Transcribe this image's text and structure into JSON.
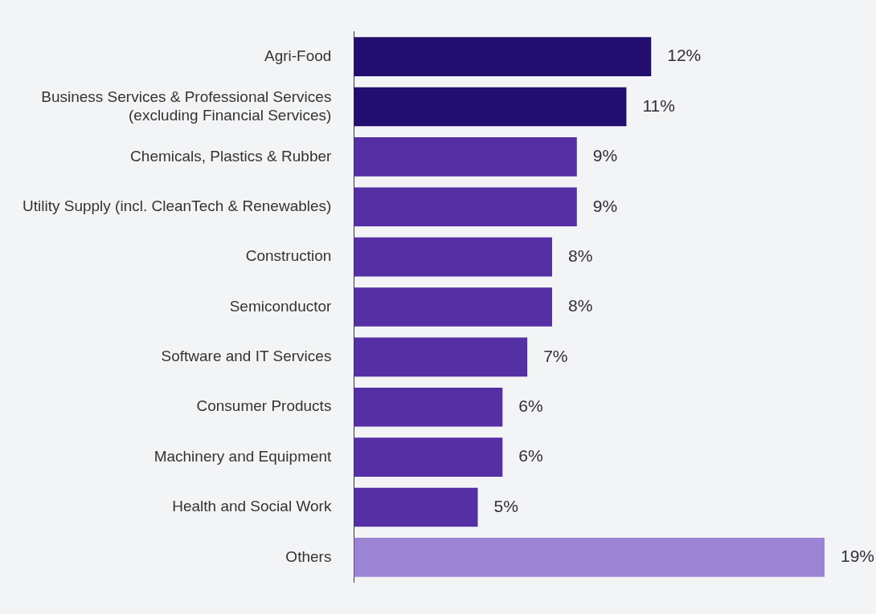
{
  "chart_data": {
    "type": "bar",
    "orientation": "horizontal",
    "categories": [
      "Agri-Food",
      "Business Services & Professional Services (excluding Financial Services)",
      "Chemicals, Plastics & Rubber",
      "Utility Supply (incl. CleanTech & Renewables)",
      "Construction",
      "Semiconductor",
      "Software and IT Services",
      "Consumer Products",
      "Machinery and Equipment",
      "Health and Social Work",
      "Others"
    ],
    "values": [
      12,
      11,
      9,
      9,
      8,
      8,
      7,
      6,
      6,
      5,
      19
    ],
    "colors": [
      "#220e6e",
      "#220e6e",
      "#5530a5",
      "#5530a5",
      "#5530a5",
      "#5530a5",
      "#5530a5",
      "#5530a5",
      "#5530a5",
      "#5530a5",
      "#9c84d4"
    ],
    "value_labels": [
      "12%",
      "11%",
      "9%",
      "9%",
      "8%",
      "8%",
      "7%",
      "6%",
      "6%",
      "5%",
      "19%"
    ],
    "legend": false
  }
}
